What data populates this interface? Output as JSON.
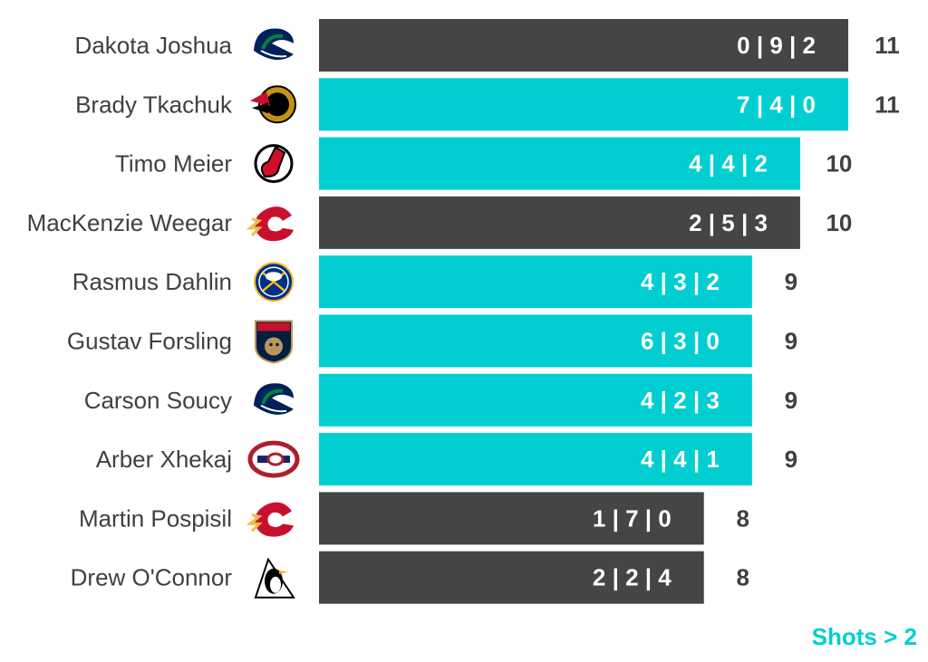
{
  "chart_data": {
    "type": "bar",
    "orientation": "horizontal",
    "title": "",
    "xlabel": "",
    "ylabel": "",
    "xlim": [
      0,
      11
    ],
    "grid": false,
    "categories": [
      "Dakota Joshua",
      "Brady Tkachuk",
      "Timo Meier",
      "MacKenzie Weegar",
      "Rasmus Dahlin",
      "Gustav Forsling",
      "Carson Soucy",
      "Arber Xhekaj",
      "Martin Pospisil",
      "Drew O'Connor"
    ],
    "values": [
      11,
      11,
      10,
      10,
      9,
      9,
      9,
      9,
      8,
      8
    ],
    "breakdown_labels": [
      "0 | 9 | 2",
      "7 | 4 | 0",
      "4 | 4 | 2",
      "2 | 5 | 3",
      "4 | 3 | 2",
      "6 | 3 | 0",
      "4 | 2 | 3",
      "4 | 4 | 1",
      "1 | 7 | 0",
      "2 | 2 | 4"
    ],
    "highlighted": [
      false,
      true,
      true,
      false,
      true,
      true,
      true,
      true,
      false,
      false
    ],
    "teams": [
      "VAN",
      "OTT",
      "NJD",
      "CGY",
      "BUF",
      "FLA",
      "VAN",
      "MTL",
      "CGY",
      "PIT"
    ],
    "team_icons": [
      "canucks-logo-icon",
      "senators-logo-icon",
      "devils-logo-icon",
      "flames-logo-icon",
      "sabres-logo-icon",
      "panthers-logo-icon",
      "canucks-logo-icon",
      "canadiens-logo-icon",
      "flames-logo-icon",
      "penguins-logo-icon"
    ]
  },
  "colors": {
    "highlight": "#00CED1",
    "default": "#454545",
    "label": "#404040",
    "footnote": "#00CED1"
  },
  "footnote": "Shots > 2"
}
